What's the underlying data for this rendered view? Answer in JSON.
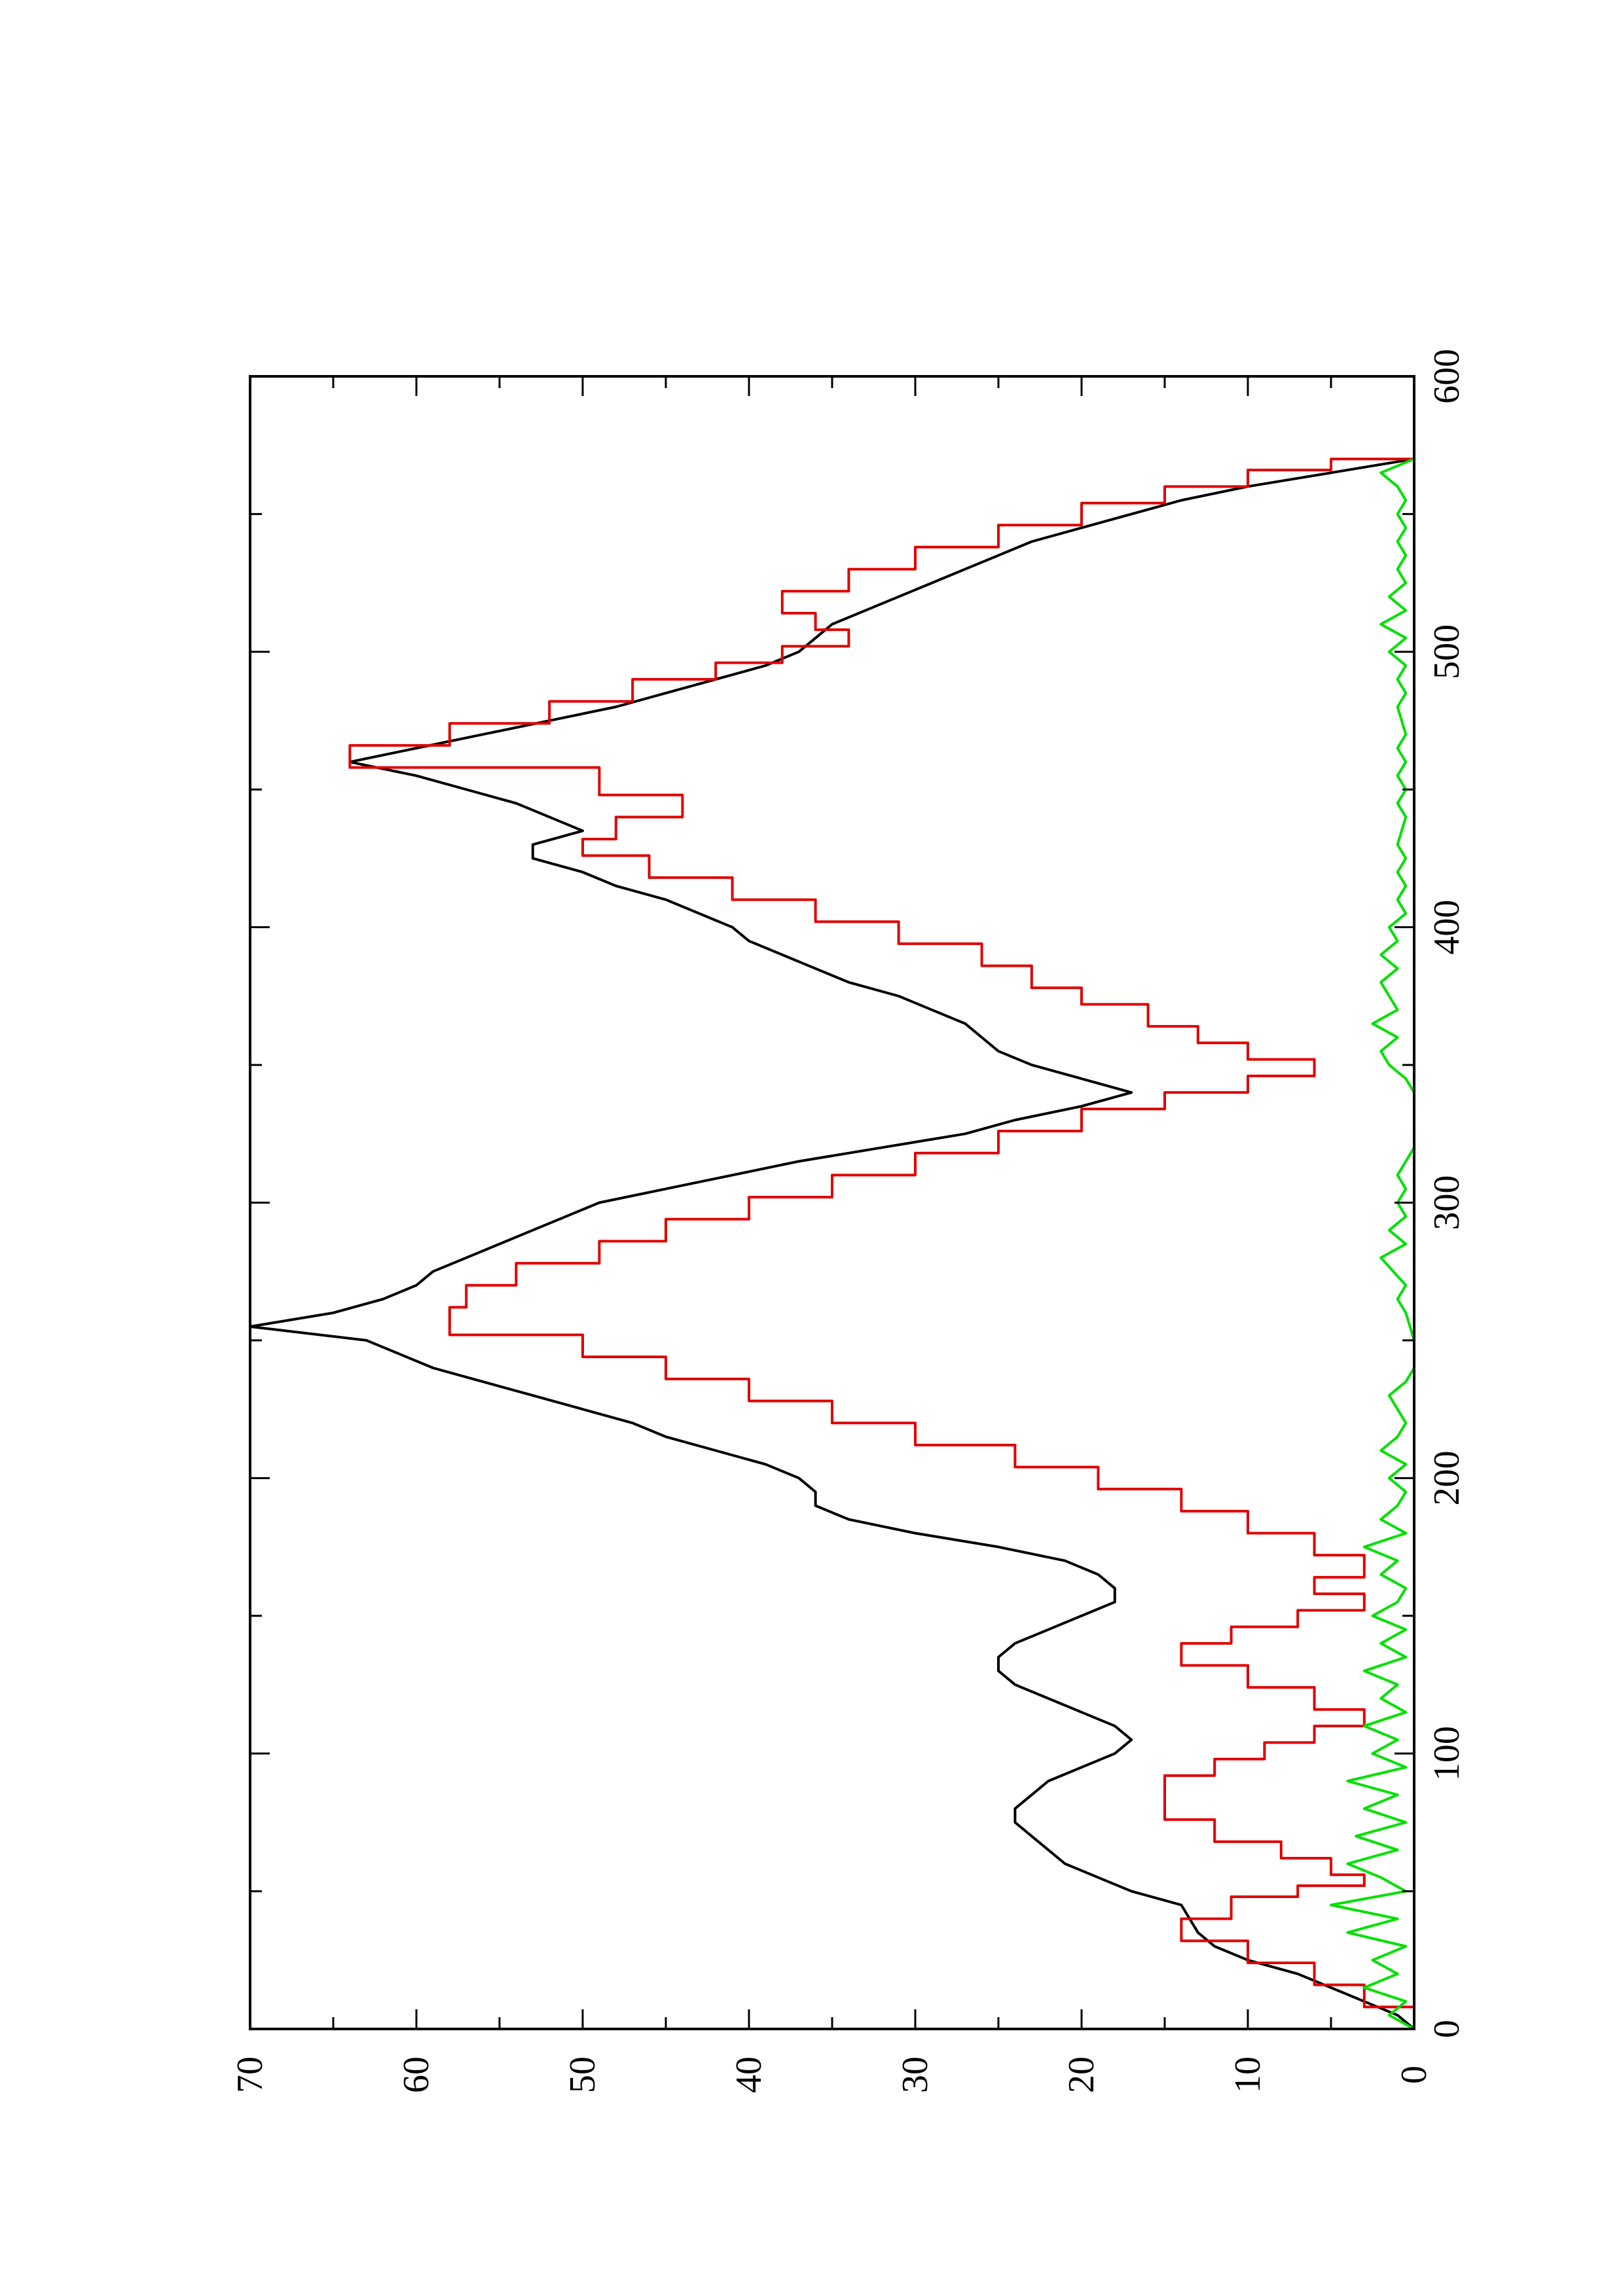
{
  "chart_data": {
    "type": "line",
    "orientation": "rotated-90-ccw",
    "title": "",
    "xlabel": "",
    "ylabel": "",
    "xlim": [
      0,
      600
    ],
    "ylim": [
      0,
      70
    ],
    "x_ticks": [
      0,
      100,
      200,
      300,
      400,
      500,
      600
    ],
    "y_ticks": [
      0,
      10,
      20,
      30,
      40,
      50,
      60,
      70
    ],
    "x_minor_ticks": [
      50,
      150,
      250,
      350,
      450,
      550
    ],
    "y_minor_ticks": [
      5,
      15,
      25,
      35,
      45,
      55,
      65
    ],
    "grid": false,
    "legend": "none",
    "series": [
      {
        "color": "#000000",
        "style": "smooth",
        "points": [
          [
            0,
            0
          ],
          [
            5,
            1
          ],
          [
            10,
            3
          ],
          [
            15,
            5
          ],
          [
            20,
            7
          ],
          [
            25,
            10
          ],
          [
            30,
            12
          ],
          [
            35,
            13
          ],
          [
            40,
            13.5
          ],
          [
            45,
            14
          ],
          [
            50,
            17
          ],
          [
            55,
            19
          ],
          [
            60,
            21
          ],
          [
            65,
            22
          ],
          [
            70,
            23
          ],
          [
            75,
            24
          ],
          [
            80,
            24
          ],
          [
            85,
            23
          ],
          [
            90,
            22
          ],
          [
            95,
            20
          ],
          [
            100,
            18
          ],
          [
            105,
            17
          ],
          [
            110,
            18
          ],
          [
            115,
            20
          ],
          [
            120,
            22
          ],
          [
            125,
            24
          ],
          [
            130,
            25
          ],
          [
            135,
            25
          ],
          [
            140,
            24
          ],
          [
            145,
            22
          ],
          [
            150,
            20
          ],
          [
            155,
            18
          ],
          [
            160,
            18
          ],
          [
            165,
            19
          ],
          [
            170,
            21
          ],
          [
            175,
            25
          ],
          [
            180,
            30
          ],
          [
            185,
            34
          ],
          [
            190,
            36
          ],
          [
            195,
            36
          ],
          [
            200,
            37
          ],
          [
            205,
            39
          ],
          [
            210,
            42
          ],
          [
            215,
            45
          ],
          [
            220,
            47
          ],
          [
            225,
            50
          ],
          [
            230,
            53
          ],
          [
            235,
            56
          ],
          [
            240,
            59
          ],
          [
            245,
            61
          ],
          [
            250,
            63
          ],
          [
            255,
            70
          ],
          [
            260,
            65
          ],
          [
            265,
            62
          ],
          [
            270,
            60
          ],
          [
            275,
            59
          ],
          [
            280,
            57
          ],
          [
            285,
            55
          ],
          [
            290,
            53
          ],
          [
            295,
            51
          ],
          [
            300,
            49
          ],
          [
            305,
            45
          ],
          [
            310,
            41
          ],
          [
            315,
            37
          ],
          [
            320,
            32
          ],
          [
            325,
            27
          ],
          [
            330,
            24
          ],
          [
            335,
            20
          ],
          [
            340,
            17
          ],
          [
            345,
            20
          ],
          [
            350,
            23
          ],
          [
            355,
            25
          ],
          [
            360,
            26
          ],
          [
            365,
            27
          ],
          [
            370,
            29
          ],
          [
            375,
            31
          ],
          [
            380,
            34
          ],
          [
            385,
            36
          ],
          [
            390,
            38
          ],
          [
            395,
            40
          ],
          [
            400,
            41
          ],
          [
            405,
            43
          ],
          [
            410,
            45
          ],
          [
            415,
            48
          ],
          [
            420,
            50
          ],
          [
            425,
            53
          ],
          [
            430,
            53
          ],
          [
            435,
            50
          ],
          [
            440,
            52
          ],
          [
            445,
            54
          ],
          [
            450,
            57
          ],
          [
            455,
            60
          ],
          [
            460,
            64
          ],
          [
            465,
            60
          ],
          [
            470,
            56
          ],
          [
            475,
            52
          ],
          [
            480,
            48
          ],
          [
            485,
            45
          ],
          [
            490,
            42
          ],
          [
            495,
            39
          ],
          [
            500,
            37
          ],
          [
            505,
            36
          ],
          [
            510,
            35
          ],
          [
            515,
            33
          ],
          [
            520,
            31
          ],
          [
            525,
            29
          ],
          [
            530,
            27
          ],
          [
            535,
            25
          ],
          [
            540,
            23
          ],
          [
            545,
            20
          ],
          [
            550,
            17
          ],
          [
            555,
            14
          ],
          [
            560,
            10
          ],
          [
            565,
            5
          ],
          [
            570,
            0
          ]
        ]
      },
      {
        "color": "#e00000",
        "style": "step",
        "points": [
          [
            0,
            0
          ],
          [
            8,
            3
          ],
          [
            16,
            6
          ],
          [
            24,
            10
          ],
          [
            32,
            14
          ],
          [
            40,
            11
          ],
          [
            48,
            7
          ],
          [
            52,
            3
          ],
          [
            56,
            5
          ],
          [
            62,
            8
          ],
          [
            68,
            12
          ],
          [
            76,
            15
          ],
          [
            86,
            15
          ],
          [
            92,
            12
          ],
          [
            98,
            9
          ],
          [
            104,
            6
          ],
          [
            110,
            3
          ],
          [
            116,
            6
          ],
          [
            124,
            10
          ],
          [
            132,
            14
          ],
          [
            140,
            11
          ],
          [
            146,
            7
          ],
          [
            152,
            3
          ],
          [
            158,
            6
          ],
          [
            164,
            3
          ],
          [
            172,
            6
          ],
          [
            180,
            10
          ],
          [
            188,
            14
          ],
          [
            196,
            19
          ],
          [
            204,
            24
          ],
          [
            212,
            30
          ],
          [
            220,
            35
          ],
          [
            228,
            40
          ],
          [
            236,
            45
          ],
          [
            244,
            50
          ],
          [
            252,
            58
          ],
          [
            262,
            57
          ],
          [
            270,
            54
          ],
          [
            278,
            49
          ],
          [
            286,
            45
          ],
          [
            294,
            40
          ],
          [
            302,
            35
          ],
          [
            310,
            30
          ],
          [
            318,
            25
          ],
          [
            326,
            20
          ],
          [
            334,
            15
          ],
          [
            340,
            10
          ],
          [
            346,
            6
          ],
          [
            352,
            10
          ],
          [
            358,
            13
          ],
          [
            364,
            16
          ],
          [
            372,
            20
          ],
          [
            378,
            23
          ],
          [
            386,
            26
          ],
          [
            394,
            31
          ],
          [
            402,
            36
          ],
          [
            410,
            41
          ],
          [
            418,
            46
          ],
          [
            426,
            50
          ],
          [
            432,
            48
          ],
          [
            440,
            44
          ],
          [
            448,
            49
          ],
          [
            458,
            64
          ],
          [
            466,
            58
          ],
          [
            474,
            52
          ],
          [
            482,
            47
          ],
          [
            490,
            42
          ],
          [
            496,
            38
          ],
          [
            502,
            34
          ],
          [
            508,
            36
          ],
          [
            514,
            38
          ],
          [
            522,
            34
          ],
          [
            530,
            30
          ],
          [
            538,
            25
          ],
          [
            546,
            20
          ],
          [
            554,
            15
          ],
          [
            560,
            10
          ],
          [
            566,
            5
          ],
          [
            570,
            0
          ]
        ]
      },
      {
        "color": "#00e000",
        "style": "noisy",
        "points": [
          [
            0,
            0
          ],
          [
            5,
            1.5
          ],
          [
            10,
            0.5
          ],
          [
            15,
            3
          ],
          [
            20,
            1
          ],
          [
            25,
            2.5
          ],
          [
            30,
            0.5
          ],
          [
            35,
            4
          ],
          [
            40,
            1
          ],
          [
            45,
            5
          ],
          [
            50,
            0.5
          ],
          [
            55,
            2
          ],
          [
            60,
            4
          ],
          [
            65,
            1
          ],
          [
            70,
            3.5
          ],
          [
            75,
            0.5
          ],
          [
            80,
            3
          ],
          [
            85,
            1
          ],
          [
            90,
            4
          ],
          [
            95,
            0.5
          ],
          [
            100,
            2.5
          ],
          [
            105,
            1
          ],
          [
            110,
            3
          ],
          [
            115,
            0.5
          ],
          [
            120,
            2
          ],
          [
            125,
            1
          ],
          [
            130,
            3
          ],
          [
            135,
            0.5
          ],
          [
            140,
            2
          ],
          [
            145,
            0.5
          ],
          [
            150,
            2.5
          ],
          [
            155,
            1
          ],
          [
            160,
            0.5
          ],
          [
            165,
            2
          ],
          [
            170,
            1
          ],
          [
            175,
            3
          ],
          [
            180,
            0.5
          ],
          [
            185,
            2
          ],
          [
            190,
            1
          ],
          [
            195,
            0.5
          ],
          [
            200,
            1.5
          ],
          [
            205,
            0.5
          ],
          [
            210,
            2
          ],
          [
            215,
            1
          ],
          [
            220,
            0.5
          ],
          [
            225,
            1
          ],
          [
            230,
            1.5
          ],
          [
            235,
            0.5
          ],
          [
            240,
            0
          ],
          [
            250,
            0
          ],
          [
            260,
            0.5
          ],
          [
            265,
            1
          ],
          [
            270,
            0.5
          ],
          [
            280,
            2
          ],
          [
            285,
            0.5
          ],
          [
            290,
            1.5
          ],
          [
            295,
            0.5
          ],
          [
            300,
            1
          ],
          [
            305,
            0.5
          ],
          [
            310,
            1
          ],
          [
            315,
            0.5
          ],
          [
            320,
            0
          ],
          [
            330,
            0
          ],
          [
            340,
            0
          ],
          [
            345,
            0.5
          ],
          [
            350,
            1.5
          ],
          [
            355,
            2
          ],
          [
            360,
            1
          ],
          [
            365,
            2.5
          ],
          [
            370,
            1
          ],
          [
            375,
            1.5
          ],
          [
            380,
            2
          ],
          [
            385,
            1
          ],
          [
            390,
            2
          ],
          [
            395,
            1
          ],
          [
            400,
            1.5
          ],
          [
            405,
            0.5
          ],
          [
            410,
            1
          ],
          [
            415,
            0.5
          ],
          [
            420,
            1
          ],
          [
            425,
            0.5
          ],
          [
            430,
            1
          ],
          [
            440,
            0.5
          ],
          [
            445,
            1
          ],
          [
            450,
            0.5
          ],
          [
            455,
            1
          ],
          [
            460,
            0.5
          ],
          [
            465,
            1
          ],
          [
            470,
            0.5
          ],
          [
            480,
            1
          ],
          [
            485,
            0.5
          ],
          [
            490,
            1
          ],
          [
            495,
            0.5
          ],
          [
            500,
            1.5
          ],
          [
            505,
            0.5
          ],
          [
            510,
            2
          ],
          [
            515,
            0.5
          ],
          [
            520,
            1.5
          ],
          [
            525,
            0.5
          ],
          [
            530,
            1
          ],
          [
            535,
            0.5
          ],
          [
            540,
            1
          ],
          [
            545,
            0.5
          ],
          [
            550,
            1
          ],
          [
            555,
            0.5
          ],
          [
            560,
            1
          ],
          [
            565,
            2
          ],
          [
            570,
            0
          ]
        ]
      }
    ]
  }
}
